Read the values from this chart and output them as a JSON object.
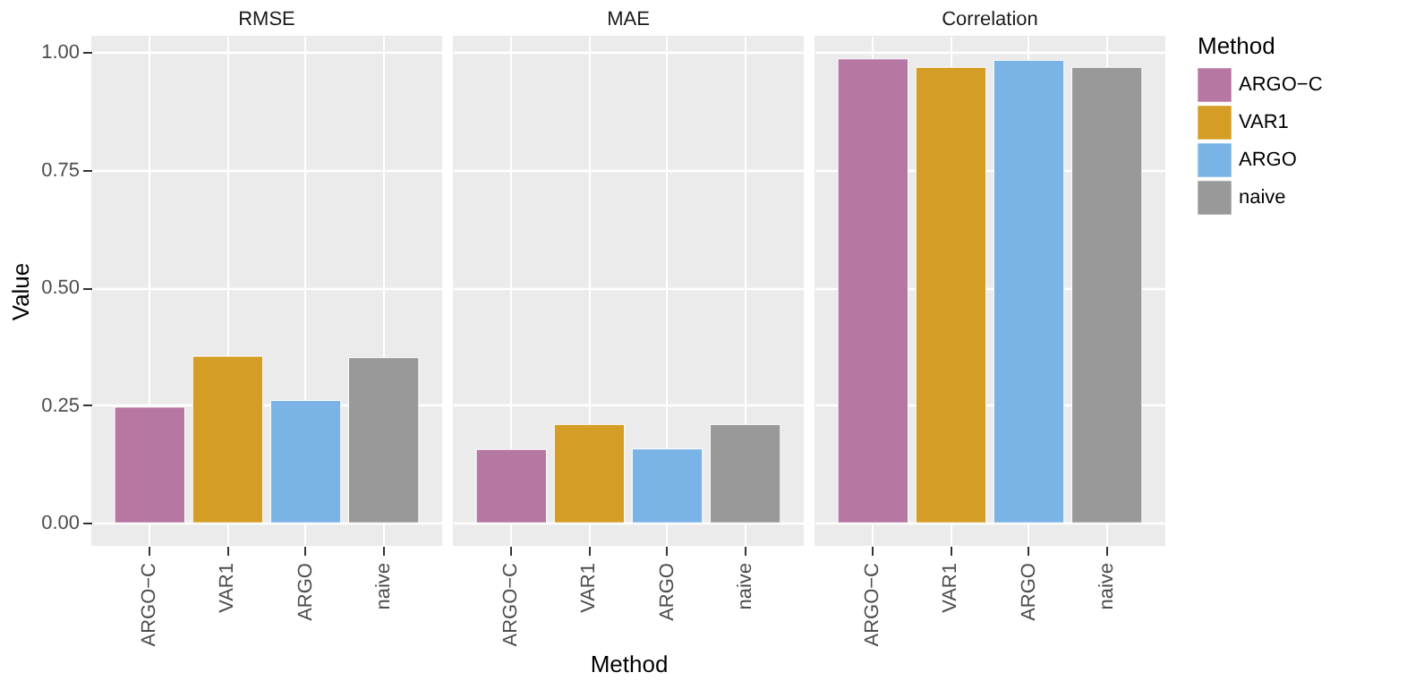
{
  "chart_data": [
    {
      "type": "bar",
      "title": "RMSE",
      "ylabel": "Value",
      "categories": [
        "ARGO−C",
        "VAR1",
        "ARGO",
        "naive"
      ],
      "series": [
        {
          "color": "#b777a3",
          "values": [
            0.246,
            null,
            null,
            null
          ]
        },
        {
          "color": "#d49e26",
          "values": [
            null,
            0.354,
            null,
            null
          ]
        },
        {
          "color": "#7ab3e5",
          "values": [
            null,
            null,
            0.26,
            null
          ]
        },
        {
          "color": "#999999",
          "values": [
            null,
            null,
            null,
            0.351
          ]
        }
      ],
      "ylim": [
        -0.049,
        1.035
      ],
      "yticks": [
        {
          "value": 0,
          "label": "0.00"
        },
        0.25,
        {
          "value": 0.5,
          "label": "0.50"
        },
        0.75,
        {
          "value": 1,
          "label": "1.00"
        }
      ],
      "grid": true
    },
    {
      "type": "bar",
      "title": "MAE",
      "xlabel": "Method",
      "categories": [
        "ARGO−C",
        "VAR1",
        "ARGO",
        "naive"
      ],
      "series": [
        {
          "color": "#b777a3",
          "values": [
            0.156,
            null,
            null,
            null
          ]
        },
        {
          "color": "#d49e26",
          "values": [
            null,
            0.209,
            null,
            null
          ]
        },
        {
          "color": "#7ab3e5",
          "values": [
            null,
            null,
            0.157,
            null
          ]
        },
        {
          "color": "#999999",
          "values": [
            null,
            null,
            null,
            0.209
          ]
        }
      ],
      "ylim": [
        -0.049,
        1.035
      ],
      "yticks": [
        0,
        0.25,
        0.5,
        0.75,
        1
      ],
      "grid": true,
      "tick_labels": "x"
    },
    {
      "type": "bar",
      "title": "Correlation",
      "legend_title": "Method",
      "legend": "right",
      "categories": [
        "ARGO−C",
        "VAR1",
        "ARGO",
        "naive"
      ],
      "series": [
        {
          "name": "ARGO−C",
          "color": "#b777a3",
          "values": [
            0.986,
            null,
            null,
            null
          ]
        },
        {
          "name": "VAR1",
          "color": "#d49e26",
          "values": [
            null,
            0.968,
            null,
            null
          ]
        },
        {
          "name": "ARGO",
          "color": "#7ab3e5",
          "values": [
            null,
            null,
            0.983,
            null
          ]
        },
        {
          "name": "naive",
          "color": "#999999",
          "values": [
            null,
            null,
            null,
            0.968
          ]
        }
      ],
      "ylim": [
        -0.049,
        1.035
      ],
      "yticks": [
        0,
        0.25,
        0.5,
        0.75,
        1
      ],
      "grid": true,
      "tick_labels": "x"
    }
  ]
}
